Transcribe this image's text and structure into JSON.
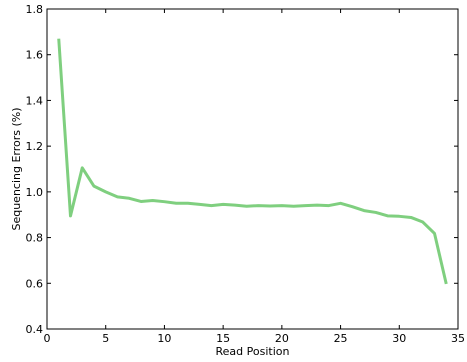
{
  "chart_data": {
    "type": "line",
    "title": "",
    "xlabel": "Read Position",
    "ylabel": "Sequencing Errors (%)",
    "xlim": [
      0,
      35
    ],
    "ylim": [
      0.4,
      1.8
    ],
    "xticks": [
      0,
      5,
      10,
      15,
      20,
      25,
      30,
      35
    ],
    "yticks": [
      0.4,
      0.6,
      0.8,
      1.0,
      1.2,
      1.4,
      1.6,
      1.8
    ],
    "xtick_labels": [
      "0",
      "5",
      "10",
      "15",
      "20",
      "25",
      "30",
      "35"
    ],
    "ytick_labels": [
      "0.4",
      "0.6",
      "0.8",
      "1.0",
      "1.2",
      "1.4",
      "1.6",
      "1.8"
    ],
    "grid": false,
    "series": [
      {
        "color": "#7fcf7f",
        "x": [
          1,
          2,
          3,
          4,
          5,
          6,
          7,
          8,
          9,
          10,
          11,
          12,
          13,
          14,
          15,
          16,
          17,
          18,
          19,
          20,
          21,
          22,
          23,
          24,
          25,
          26,
          27,
          28,
          29,
          30,
          31,
          32,
          33,
          34
        ],
        "y": [
          1.67,
          0.895,
          1.105,
          1.025,
          1.0,
          0.978,
          0.972,
          0.958,
          0.962,
          0.957,
          0.95,
          0.95,
          0.945,
          0.94,
          0.945,
          0.942,
          0.937,
          0.94,
          0.938,
          0.94,
          0.937,
          0.94,
          0.942,
          0.94,
          0.95,
          0.935,
          0.918,
          0.91,
          0.895,
          0.893,
          0.888,
          0.868,
          0.818,
          0.597
        ]
      }
    ]
  }
}
